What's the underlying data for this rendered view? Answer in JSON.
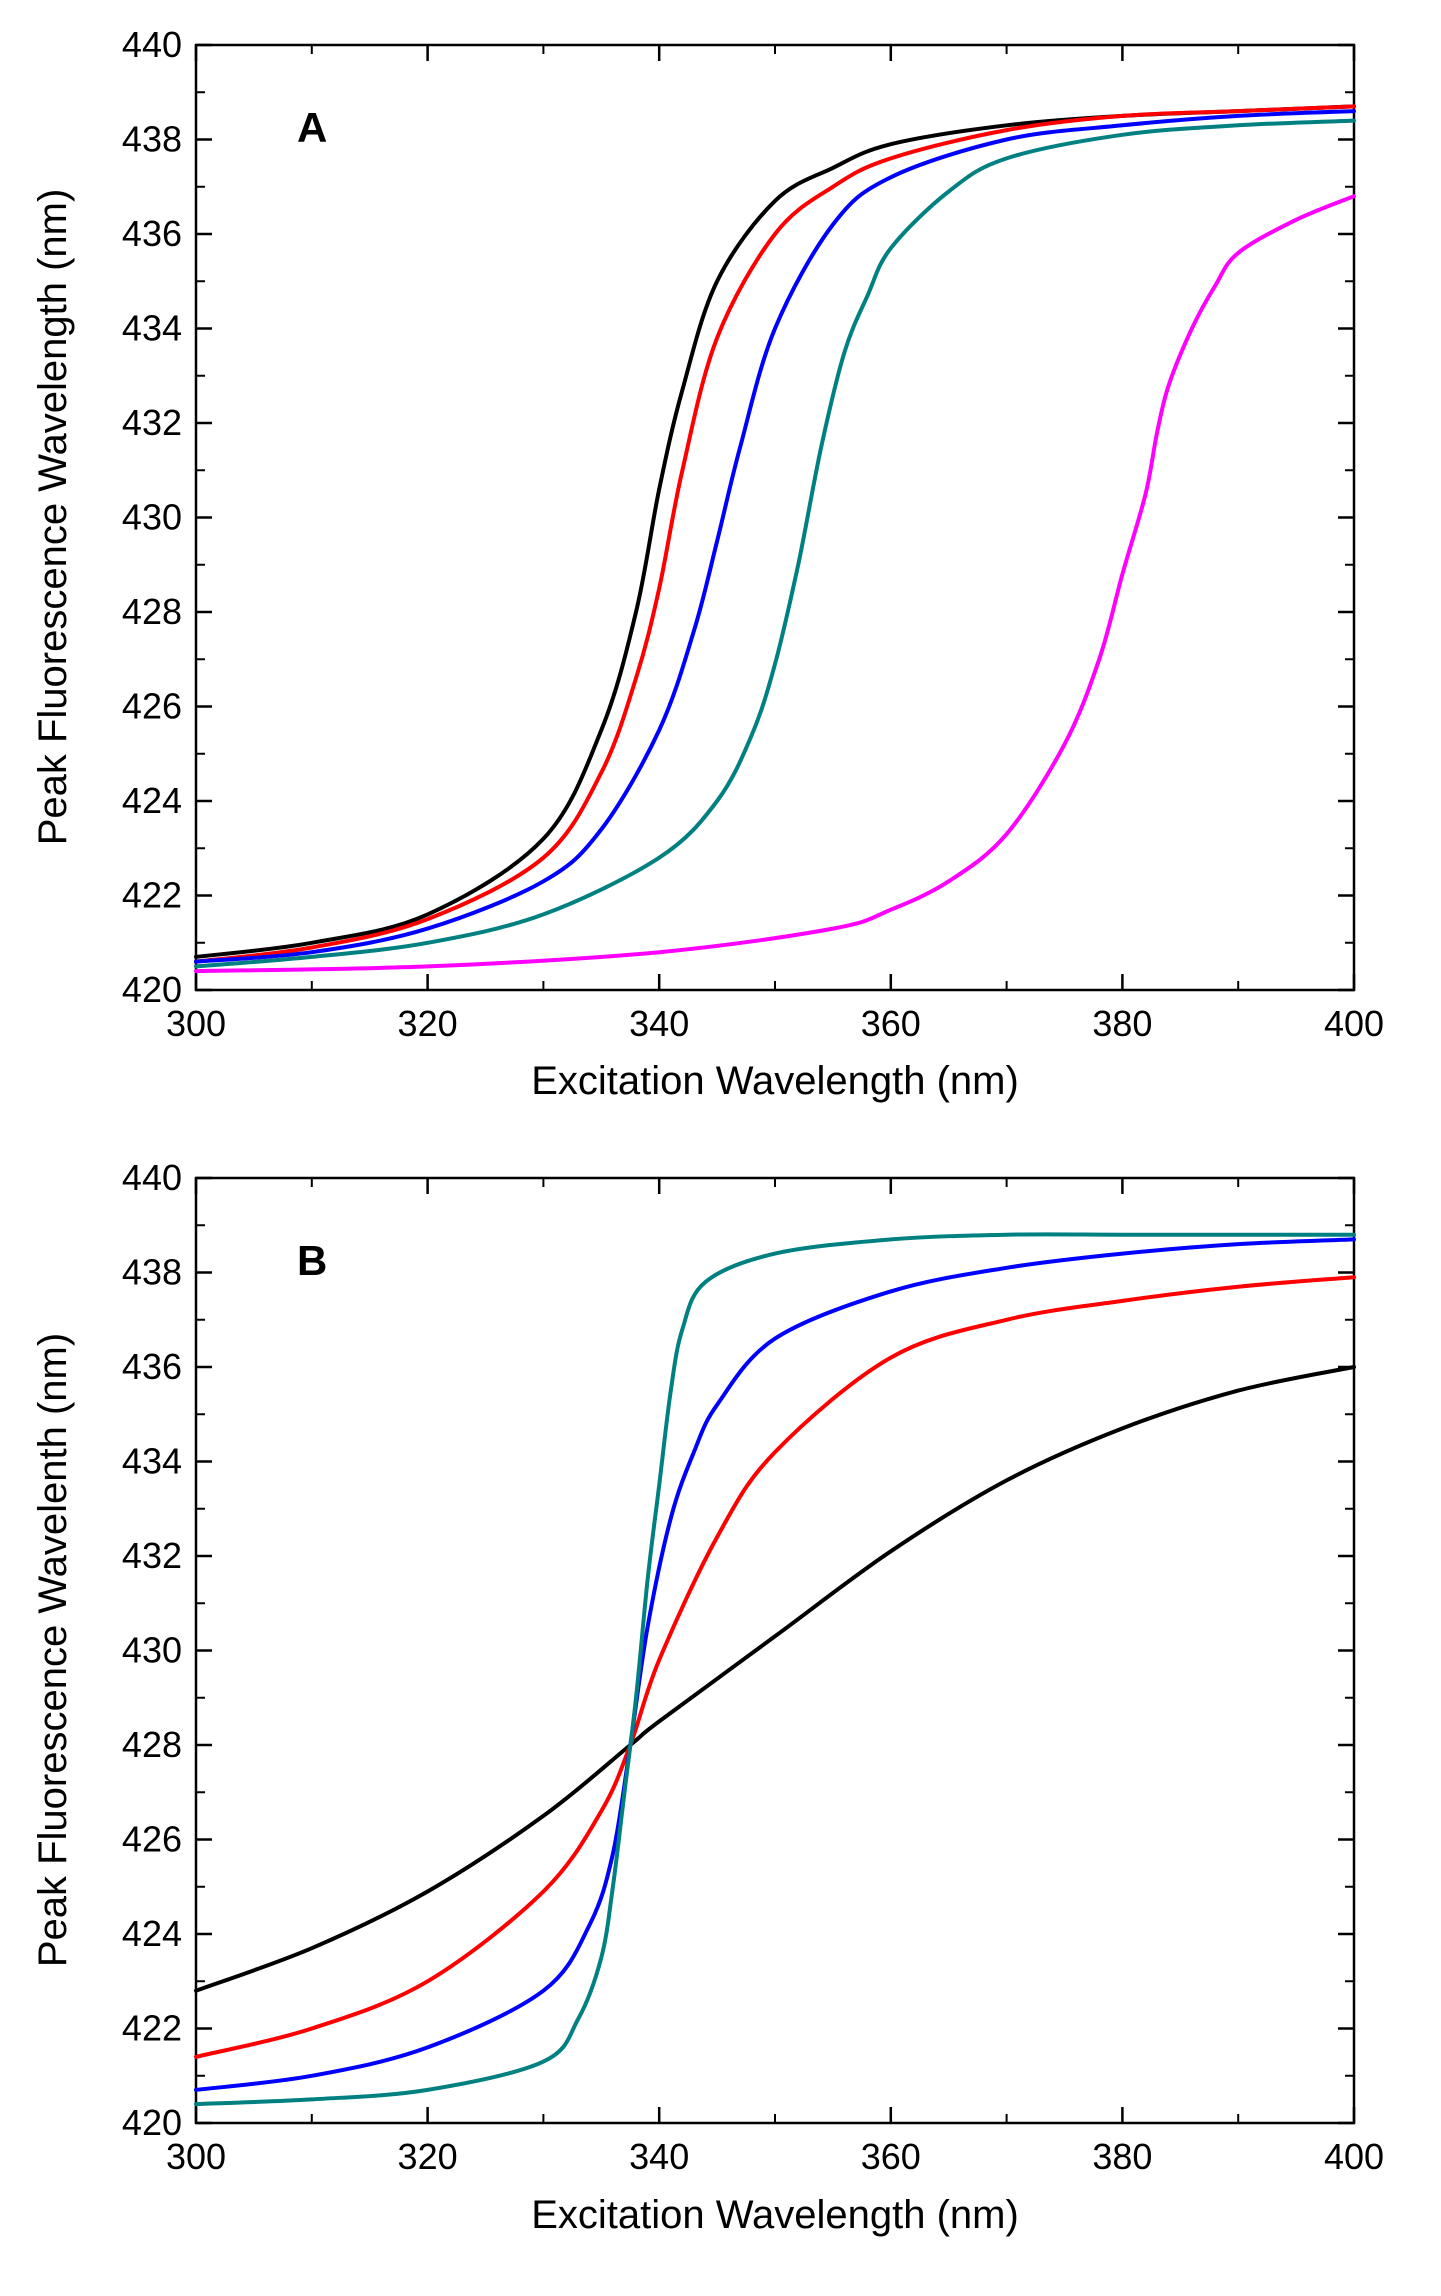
{
  "chart_data": [
    {
      "type": "line",
      "panel_label": "A",
      "xlabel": "Excitation Wavelength (nm)",
      "ylabel": "Peak Fluorescence Wavelength (nm)",
      "xlim": [
        300,
        400
      ],
      "ylim": [
        420,
        440
      ],
      "x_ticks": [
        "300",
        "320",
        "340",
        "360",
        "380",
        "400"
      ],
      "y_ticks": [
        "420",
        "422",
        "424",
        "426",
        "428",
        "430",
        "432",
        "434",
        "436",
        "438",
        "440"
      ],
      "grid": false,
      "series": [
        {
          "color": "#000000",
          "x": [
            300,
            310,
            320,
            330,
            335,
            338,
            340,
            342,
            345,
            350,
            355,
            360,
            370,
            380,
            390,
            400
          ],
          "y": [
            420.7,
            421.0,
            421.6,
            423.2,
            425.5,
            428.0,
            430.6,
            432.7,
            435.0,
            436.7,
            437.4,
            437.9,
            438.3,
            438.5,
            438.6,
            438.7
          ]
        },
        {
          "color": "#ff0000",
          "x": [
            300,
            310,
            320,
            330,
            335,
            338,
            340,
            342,
            345,
            350,
            355,
            360,
            370,
            380,
            390,
            400
          ],
          "y": [
            420.6,
            420.9,
            421.5,
            422.8,
            424.6,
            426.6,
            428.5,
            431.0,
            433.8,
            436.0,
            437.0,
            437.6,
            438.2,
            438.5,
            438.6,
            438.7
          ]
        },
        {
          "color": "#0000ff",
          "x": [
            300,
            310,
            320,
            330,
            335,
            340,
            343,
            345,
            347,
            350,
            355,
            360,
            370,
            380,
            390,
            400
          ],
          "y": [
            420.6,
            420.8,
            421.3,
            422.3,
            423.4,
            425.5,
            427.6,
            429.5,
            431.5,
            434.0,
            436.2,
            437.2,
            438.0,
            438.3,
            438.5,
            438.6
          ]
        },
        {
          "color": "#008080",
          "x": [
            300,
            310,
            320,
            330,
            340,
            345,
            348,
            350,
            352,
            354,
            356,
            358,
            360,
            365,
            370,
            380,
            390,
            400
          ],
          "y": [
            420.5,
            420.7,
            421.0,
            421.6,
            422.8,
            424.0,
            425.4,
            426.9,
            429.0,
            431.5,
            433.5,
            434.7,
            435.7,
            436.9,
            437.6,
            438.1,
            438.3,
            438.4
          ]
        },
        {
          "color": "#ff00ff",
          "x": [
            300,
            320,
            340,
            355,
            360,
            365,
            370,
            375,
            378,
            380,
            382,
            383,
            384,
            386,
            388,
            390,
            395,
            400
          ],
          "y": [
            420.4,
            420.5,
            420.8,
            421.3,
            421.7,
            422.3,
            423.3,
            425.2,
            427.0,
            428.8,
            430.5,
            431.8,
            432.8,
            434.0,
            434.9,
            435.6,
            436.3,
            436.8
          ]
        }
      ]
    },
    {
      "type": "line",
      "panel_label": "B",
      "xlabel": "Excitation Wavelength (nm)",
      "ylabel": "Peak Fluorescence Wavelenth (nm)",
      "xlim": [
        300,
        400
      ],
      "ylim": [
        420,
        440
      ],
      "x_ticks": [
        "300",
        "320",
        "340",
        "360",
        "380",
        "400"
      ],
      "y_ticks": [
        "420",
        "422",
        "424",
        "426",
        "428",
        "430",
        "432",
        "434",
        "436",
        "438",
        "440"
      ],
      "grid": false,
      "series": [
        {
          "color": "#000000",
          "x": [
            300,
            310,
            320,
            330,
            337.5,
            340,
            350,
            360,
            370,
            380,
            390,
            400
          ],
          "y": [
            422.8,
            423.7,
            424.9,
            426.5,
            428.0,
            428.5,
            430.3,
            432.1,
            433.6,
            434.7,
            435.5,
            436.0
          ]
        },
        {
          "color": "#ff0000",
          "x": [
            300,
            310,
            320,
            330,
            335,
            337.5,
            340,
            345,
            350,
            360,
            370,
            380,
            390,
            400
          ],
          "y": [
            421.4,
            422.0,
            423.0,
            424.9,
            426.6,
            428.0,
            429.8,
            432.4,
            434.2,
            436.2,
            437.0,
            437.4,
            437.7,
            437.9
          ]
        },
        {
          "color": "#0000ff",
          "x": [
            300,
            310,
            320,
            330,
            334,
            336,
            337.5,
            339,
            341,
            343,
            345,
            350,
            360,
            370,
            380,
            390,
            400
          ],
          "y": [
            420.7,
            421.0,
            421.6,
            422.8,
            424.2,
            425.7,
            428.0,
            430.5,
            432.8,
            434.2,
            435.2,
            436.6,
            437.6,
            438.1,
            438.4,
            438.6,
            438.7
          ]
        },
        {
          "color": "#008080",
          "x": [
            300,
            310,
            320,
            330,
            333,
            335,
            336,
            337,
            338,
            339,
            340,
            341,
            342,
            344,
            350,
            360,
            370,
            380,
            390,
            400
          ],
          "y": [
            420.4,
            420.5,
            420.7,
            421.3,
            422.2,
            423.5,
            425.0,
            427.0,
            429.0,
            431.5,
            433.5,
            435.5,
            436.8,
            437.8,
            438.4,
            438.7,
            438.8,
            438.8,
            438.8,
            438.8
          ]
        }
      ]
    }
  ]
}
